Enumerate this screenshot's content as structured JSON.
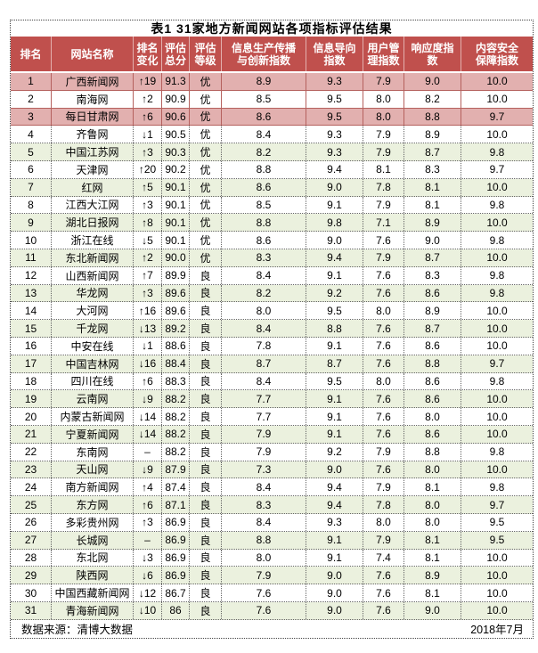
{
  "title": "表1 31家地方新闻网站各项指标评估结果",
  "footer": {
    "source": "数据来源：清博大数据",
    "date": "2018年7月"
  },
  "colors": {
    "header_bg": "#c0504d",
    "top_row_bg": "#e2b0af",
    "alt_row_bg": "#ebf1de",
    "top_grid_border": "#b5615e"
  },
  "chart_data": {
    "type": "table",
    "title": "表1 31家地方新闻网站各项指标评估结果",
    "columns": [
      "排名",
      "网站名称",
      "排名变化",
      "评估总分",
      "评估等级",
      "信息生产传播与创新指数",
      "信息导向指数",
      "用户管理指数",
      "响应度指数",
      "内容安全保障指数"
    ],
    "header_lines": [
      "排名",
      "网站名称",
      "排名\n变化",
      "评估\n总分",
      "评估\n等级",
      "信息生产传播\n与创新指数",
      "信息导向\n指数",
      "用户管\n理指数",
      "响应度指\n数",
      "内容安全\n保障指数"
    ],
    "rows": [
      [
        "1",
        "广西新闻网",
        "↑19",
        "91.3",
        "优",
        "8.9",
        "9.3",
        "7.9",
        "9.0",
        "10.0",
        "pink"
      ],
      [
        "2",
        "南海网",
        "↑2",
        "90.9",
        "优",
        "8.5",
        "9.5",
        "8.0",
        "8.2",
        "10.0",
        "white-solid"
      ],
      [
        "3",
        "每日甘肃网",
        "↑6",
        "90.6",
        "优",
        "8.6",
        "9.5",
        "8.0",
        "8.8",
        "9.7",
        "pink"
      ],
      [
        "4",
        "齐鲁网",
        "↓1",
        "90.5",
        "优",
        "8.4",
        "9.3",
        "7.9",
        "8.9",
        "10.0",
        "white"
      ],
      [
        "5",
        "中国江苏网",
        "↑3",
        "90.3",
        "优",
        "8.2",
        "9.3",
        "7.9",
        "8.7",
        "9.8",
        "green"
      ],
      [
        "6",
        "天津网",
        "↑20",
        "90.2",
        "优",
        "8.8",
        "9.4",
        "8.1",
        "8.3",
        "9.7",
        "white"
      ],
      [
        "7",
        "红网",
        "↑5",
        "90.1",
        "优",
        "8.6",
        "9.0",
        "7.8",
        "8.1",
        "10.0",
        "green"
      ],
      [
        "8",
        "江西大江网",
        "↑3",
        "90.1",
        "优",
        "8.5",
        "9.1",
        "7.9",
        "8.1",
        "9.8",
        "white"
      ],
      [
        "9",
        "湖北日报网",
        "↑8",
        "90.1",
        "优",
        "8.8",
        "9.8",
        "7.1",
        "8.9",
        "10.0",
        "green"
      ],
      [
        "10",
        "浙江在线",
        "↓5",
        "90.1",
        "优",
        "8.6",
        "9.0",
        "7.6",
        "9.0",
        "9.8",
        "white"
      ],
      [
        "11",
        "东北新闻网",
        "↑2",
        "90.0",
        "优",
        "8.3",
        "9.4",
        "7.9",
        "8.7",
        "10.0",
        "green"
      ],
      [
        "12",
        "山西新闻网",
        "↑7",
        "89.9",
        "良",
        "8.4",
        "9.1",
        "7.6",
        "8.3",
        "9.8",
        "white"
      ],
      [
        "13",
        "华龙网",
        "↑3",
        "89.6",
        "良",
        "8.2",
        "9.2",
        "7.6",
        "8.6",
        "9.8",
        "green"
      ],
      [
        "14",
        "大河网",
        "↑16",
        "89.6",
        "良",
        "8.0",
        "9.5",
        "8.0",
        "8.9",
        "10.0",
        "white"
      ],
      [
        "15",
        "千龙网",
        "↓13",
        "89.2",
        "良",
        "8.4",
        "8.8",
        "7.6",
        "8.7",
        "10.0",
        "green"
      ],
      [
        "16",
        "中安在线",
        "↓1",
        "88.6",
        "良",
        "7.8",
        "9.1",
        "7.6",
        "8.6",
        "10.0",
        "white"
      ],
      [
        "17",
        "中国吉林网",
        "↓16",
        "88.4",
        "良",
        "8.7",
        "8.7",
        "7.6",
        "8.8",
        "9.7",
        "green"
      ],
      [
        "18",
        "四川在线",
        "↑6",
        "88.3",
        "良",
        "8.4",
        "9.5",
        "8.0",
        "8.6",
        "9.8",
        "white"
      ],
      [
        "19",
        "云南网",
        "↓9",
        "88.2",
        "良",
        "7.7",
        "9.1",
        "7.6",
        "8.6",
        "10.0",
        "green"
      ],
      [
        "20",
        "内蒙古新闻网",
        "↓14",
        "88.2",
        "良",
        "7.7",
        "9.1",
        "7.6",
        "8.0",
        "10.0",
        "white"
      ],
      [
        "21",
        "宁夏新闻网",
        "↓14",
        "88.2",
        "良",
        "7.9",
        "9.1",
        "7.6",
        "8.6",
        "10.0",
        "green"
      ],
      [
        "22",
        "东南网",
        "–",
        "88.2",
        "良",
        "7.9",
        "9.2",
        "7.9",
        "8.8",
        "9.8",
        "white"
      ],
      [
        "23",
        "天山网",
        "↓9",
        "87.9",
        "良",
        "7.3",
        "9.0",
        "7.6",
        "8.0",
        "10.0",
        "green"
      ],
      [
        "24",
        "南方新闻网",
        "↑4",
        "87.4",
        "良",
        "8.4",
        "9.4",
        "7.9",
        "8.1",
        "9.8",
        "white"
      ],
      [
        "25",
        "东方网",
        "↑6",
        "87.1",
        "良",
        "8.3",
        "9.4",
        "7.8",
        "8.0",
        "9.7",
        "green"
      ],
      [
        "26",
        "多彩贵州网",
        "↑3",
        "86.9",
        "良",
        "8.4",
        "9.3",
        "8.0",
        "8.0",
        "9.5",
        "white"
      ],
      [
        "27",
        "长城网",
        "–",
        "86.9",
        "良",
        "8.8",
        "9.1",
        "7.9",
        "8.1",
        "9.5",
        "green"
      ],
      [
        "28",
        "东北网",
        "↓3",
        "86.9",
        "良",
        "8.0",
        "9.1",
        "7.4",
        "8.1",
        "10.0",
        "white"
      ],
      [
        "29",
        "陕西网",
        "↓6",
        "86.9",
        "良",
        "7.9",
        "9.0",
        "7.6",
        "8.9",
        "10.0",
        "green"
      ],
      [
        "30",
        "中国西藏新闻网",
        "↓12",
        "86.7",
        "良",
        "7.6",
        "9.0",
        "7.6",
        "8.1",
        "10.0",
        "white"
      ],
      [
        "31",
        "青海新闻网",
        "↓10",
        "86",
        "良",
        "7.6",
        "9.0",
        "7.6",
        "9.0",
        "10.0",
        "green"
      ]
    ]
  }
}
